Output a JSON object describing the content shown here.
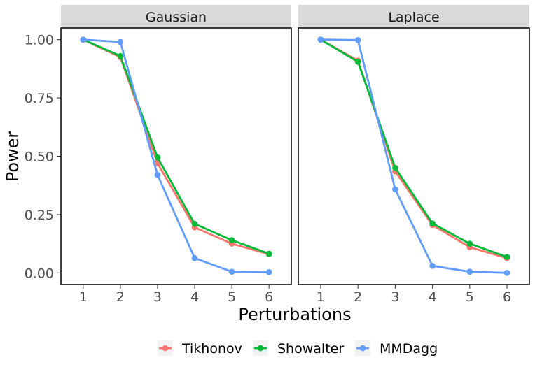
{
  "chart_data": {
    "type": "line",
    "xlabel": "Perturbations",
    "ylabel": "Power",
    "x": [
      1,
      2,
      3,
      4,
      5,
      6
    ],
    "x_tick_labels": [
      "1",
      "2",
      "3",
      "4",
      "5",
      "6"
    ],
    "y_tick_labels": [
      "0.00",
      "0.25",
      "0.50",
      "0.75",
      "1.00"
    ],
    "xlim": [
      0.4,
      6.6
    ],
    "ylim": [
      -0.05,
      1.05
    ],
    "legend_position": "bottom",
    "colors": {
      "Tikhonov": "#F8766D",
      "Showalter": "#00BA38",
      "MMDagg": "#619CFF"
    },
    "panels": [
      {
        "name": "Gaussian",
        "series": [
          {
            "name": "Tikhonov",
            "values": [
              1.0,
              0.925,
              0.47,
              0.195,
              0.125,
              0.08
            ]
          },
          {
            "name": "Showalter",
            "values": [
              1.0,
              0.93,
              0.495,
              0.21,
              0.14,
              0.082
            ]
          },
          {
            "name": "MMDagg",
            "values": [
              1.0,
              0.99,
              0.42,
              0.063,
              0.005,
              0.003
            ]
          }
        ]
      },
      {
        "name": "Laplace",
        "series": [
          {
            "name": "Tikhonov",
            "values": [
              1.0,
              0.91,
              0.435,
              0.205,
              0.11,
              0.063
            ]
          },
          {
            "name": "Showalter",
            "values": [
              1.0,
              0.905,
              0.45,
              0.212,
              0.125,
              0.068
            ]
          },
          {
            "name": "MMDagg",
            "values": [
              1.0,
              0.998,
              0.358,
              0.03,
              0.005,
              0.0
            ]
          }
        ]
      }
    ],
    "legend": [
      "Tikhonov",
      "Showalter",
      "MMDagg"
    ]
  }
}
